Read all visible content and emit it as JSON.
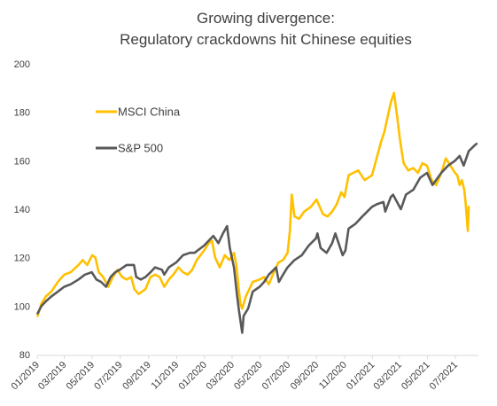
{
  "chart_data": {
    "type": "line",
    "title_lines": [
      "Growing divergence:",
      "Regulatory crackdowns hit Chinese equities"
    ],
    "xlabel": "",
    "ylabel": "",
    "ylim": [
      80,
      200
    ],
    "yticks": [
      80,
      100,
      120,
      140,
      160,
      180,
      200
    ],
    "xlim": [
      "2019-01-01",
      "2021-08-20"
    ],
    "xticks": [
      "01/2019",
      "03/2019",
      "05/2019",
      "07/2019",
      "09/2019",
      "11/2019",
      "01/2020",
      "03/2020",
      "05/2020",
      "07/2020",
      "09/2020",
      "11/2020",
      "01/2021",
      "03/2021",
      "05/2021",
      "07/2021"
    ],
    "grid": false,
    "legend_position": "upper-left",
    "series": [
      {
        "name": "MSCI China",
        "color": "#FFC000",
        "points": [
          [
            "2019-01-02",
            96
          ],
          [
            "2019-01-10",
            101
          ],
          [
            "2019-01-20",
            104
          ],
          [
            "2019-02-01",
            106
          ],
          [
            "2019-02-15",
            110
          ],
          [
            "2019-03-01",
            113
          ],
          [
            "2019-03-15",
            114
          ],
          [
            "2019-04-01",
            117
          ],
          [
            "2019-04-10",
            119
          ],
          [
            "2019-04-20",
            117
          ],
          [
            "2019-05-01",
            121
          ],
          [
            "2019-05-08",
            120
          ],
          [
            "2019-05-15",
            114
          ],
          [
            "2019-05-25",
            112
          ],
          [
            "2019-06-05",
            108
          ],
          [
            "2019-06-15",
            112
          ],
          [
            "2019-06-25",
            115
          ],
          [
            "2019-07-05",
            112
          ],
          [
            "2019-07-15",
            111
          ],
          [
            "2019-07-25",
            112
          ],
          [
            "2019-08-01",
            107
          ],
          [
            "2019-08-10",
            105
          ],
          [
            "2019-08-25",
            107
          ],
          [
            "2019-09-05",
            112
          ],
          [
            "2019-09-15",
            113
          ],
          [
            "2019-09-25",
            112
          ],
          [
            "2019-10-05",
            108
          ],
          [
            "2019-10-15",
            111
          ],
          [
            "2019-10-25",
            113
          ],
          [
            "2019-11-05",
            116
          ],
          [
            "2019-11-15",
            114
          ],
          [
            "2019-11-25",
            113
          ],
          [
            "2019-12-05",
            115
          ],
          [
            "2019-12-15",
            119
          ],
          [
            "2019-12-31",
            123
          ],
          [
            "2020-01-10",
            126
          ],
          [
            "2020-01-17",
            127
          ],
          [
            "2020-01-24",
            120
          ],
          [
            "2020-02-03",
            116
          ],
          [
            "2020-02-14",
            121
          ],
          [
            "2020-02-24",
            119
          ],
          [
            "2020-03-05",
            122
          ],
          [
            "2020-03-10",
            117
          ],
          [
            "2020-03-16",
            106
          ],
          [
            "2020-03-19",
            101
          ],
          [
            "2020-03-23",
            99
          ],
          [
            "2020-03-31",
            104
          ],
          [
            "2020-04-15",
            110
          ],
          [
            "2020-04-30",
            111
          ],
          [
            "2020-05-10",
            112
          ],
          [
            "2020-05-20",
            109
          ],
          [
            "2020-05-31",
            114
          ],
          [
            "2020-06-10",
            118
          ],
          [
            "2020-06-20",
            119
          ],
          [
            "2020-06-30",
            122
          ],
          [
            "2020-07-05",
            131
          ],
          [
            "2020-07-09",
            146
          ],
          [
            "2020-07-15",
            137
          ],
          [
            "2020-07-25",
            136
          ],
          [
            "2020-08-05",
            139
          ],
          [
            "2020-08-20",
            141
          ],
          [
            "2020-09-01",
            144
          ],
          [
            "2020-09-15",
            138
          ],
          [
            "2020-09-25",
            137
          ],
          [
            "2020-10-05",
            139
          ],
          [
            "2020-10-15",
            142
          ],
          [
            "2020-10-25",
            147
          ],
          [
            "2020-11-01",
            145
          ],
          [
            "2020-11-10",
            154
          ],
          [
            "2020-11-20",
            155
          ],
          [
            "2020-12-01",
            156
          ],
          [
            "2020-12-15",
            152
          ],
          [
            "2020-12-31",
            154
          ],
          [
            "2021-01-10",
            161
          ],
          [
            "2021-01-20",
            168
          ],
          [
            "2021-01-27",
            172
          ],
          [
            "2021-02-03",
            178
          ],
          [
            "2021-02-10",
            184
          ],
          [
            "2021-02-17",
            188
          ],
          [
            "2021-02-24",
            178
          ],
          [
            "2021-03-01",
            170
          ],
          [
            "2021-03-05",
            165
          ],
          [
            "2021-03-10",
            159
          ],
          [
            "2021-03-20",
            156
          ],
          [
            "2021-03-31",
            157
          ],
          [
            "2021-04-10",
            155
          ],
          [
            "2021-04-20",
            159
          ],
          [
            "2021-04-30",
            158
          ],
          [
            "2021-05-10",
            152
          ],
          [
            "2021-05-20",
            150
          ],
          [
            "2021-05-31",
            155
          ],
          [
            "2021-06-10",
            161
          ],
          [
            "2021-06-20",
            158
          ],
          [
            "2021-06-30",
            155
          ],
          [
            "2021-07-05",
            154
          ],
          [
            "2021-07-10",
            150
          ],
          [
            "2021-07-15",
            152
          ],
          [
            "2021-07-20",
            148
          ],
          [
            "2021-07-23",
            143
          ],
          [
            "2021-07-27",
            133
          ],
          [
            "2021-07-28",
            131
          ],
          [
            "2021-07-30",
            141
          ]
        ]
      },
      {
        "name": "S&P 500",
        "color": "#595959",
        "points": [
          [
            "2019-01-02",
            97
          ],
          [
            "2019-01-10",
            100
          ],
          [
            "2019-01-20",
            102
          ],
          [
            "2019-02-01",
            104
          ],
          [
            "2019-02-15",
            106
          ],
          [
            "2019-03-01",
            108
          ],
          [
            "2019-03-15",
            109
          ],
          [
            "2019-04-01",
            111
          ],
          [
            "2019-04-15",
            113
          ],
          [
            "2019-04-30",
            114
          ],
          [
            "2019-05-10",
            111
          ],
          [
            "2019-05-20",
            110
          ],
          [
            "2019-05-31",
            108
          ],
          [
            "2019-06-10",
            112
          ],
          [
            "2019-06-20",
            114
          ],
          [
            "2019-06-30",
            115
          ],
          [
            "2019-07-15",
            117
          ],
          [
            "2019-07-31",
            117
          ],
          [
            "2019-08-05",
            112
          ],
          [
            "2019-08-15",
            111
          ],
          [
            "2019-08-25",
            112
          ],
          [
            "2019-09-05",
            114
          ],
          [
            "2019-09-15",
            116
          ],
          [
            "2019-09-30",
            115
          ],
          [
            "2019-10-05",
            113
          ],
          [
            "2019-10-15",
            116
          ],
          [
            "2019-10-31",
            118
          ],
          [
            "2019-11-15",
            121
          ],
          [
            "2019-11-30",
            122
          ],
          [
            "2019-12-10",
            122
          ],
          [
            "2019-12-31",
            125
          ],
          [
            "2020-01-10",
            127
          ],
          [
            "2020-01-20",
            129
          ],
          [
            "2020-01-31",
            126
          ],
          [
            "2020-02-10",
            130
          ],
          [
            "2020-02-19",
            133
          ],
          [
            "2020-02-25",
            124
          ],
          [
            "2020-03-05",
            116
          ],
          [
            "2020-03-12",
            104
          ],
          [
            "2020-03-16",
            98
          ],
          [
            "2020-03-23",
            89
          ],
          [
            "2020-03-26",
            96
          ],
          [
            "2020-04-05",
            99
          ],
          [
            "2020-04-15",
            106
          ],
          [
            "2020-04-30",
            108
          ],
          [
            "2020-05-10",
            110
          ],
          [
            "2020-05-20",
            113
          ],
          [
            "2020-06-05",
            116
          ],
          [
            "2020-06-11",
            110
          ],
          [
            "2020-06-20",
            113
          ],
          [
            "2020-06-30",
            116
          ],
          [
            "2020-07-15",
            119
          ],
          [
            "2020-07-31",
            121
          ],
          [
            "2020-08-15",
            125
          ],
          [
            "2020-08-31",
            128
          ],
          [
            "2020-09-03",
            130
          ],
          [
            "2020-09-10",
            124
          ],
          [
            "2020-09-23",
            122
          ],
          [
            "2020-10-05",
            126
          ],
          [
            "2020-10-12",
            130
          ],
          [
            "2020-10-28",
            121
          ],
          [
            "2020-11-03",
            123
          ],
          [
            "2020-11-10",
            132
          ],
          [
            "2020-11-25",
            134
          ],
          [
            "2020-12-10",
            137
          ],
          [
            "2020-12-31",
            141
          ],
          [
            "2021-01-10",
            142
          ],
          [
            "2021-01-25",
            143
          ],
          [
            "2021-01-29",
            139
          ],
          [
            "2021-02-10",
            145
          ],
          [
            "2021-02-15",
            146
          ],
          [
            "2021-03-04",
            140
          ],
          [
            "2021-03-15",
            146
          ],
          [
            "2021-03-31",
            148
          ],
          [
            "2021-04-15",
            153
          ],
          [
            "2021-04-30",
            155
          ],
          [
            "2021-05-12",
            150
          ],
          [
            "2021-05-31",
            155
          ],
          [
            "2021-06-15",
            158
          ],
          [
            "2021-06-30",
            160
          ],
          [
            "2021-07-10",
            162
          ],
          [
            "2021-07-19",
            158
          ],
          [
            "2021-07-30",
            164
          ],
          [
            "2021-08-10",
            166
          ],
          [
            "2021-08-16",
            167
          ]
        ]
      }
    ]
  }
}
